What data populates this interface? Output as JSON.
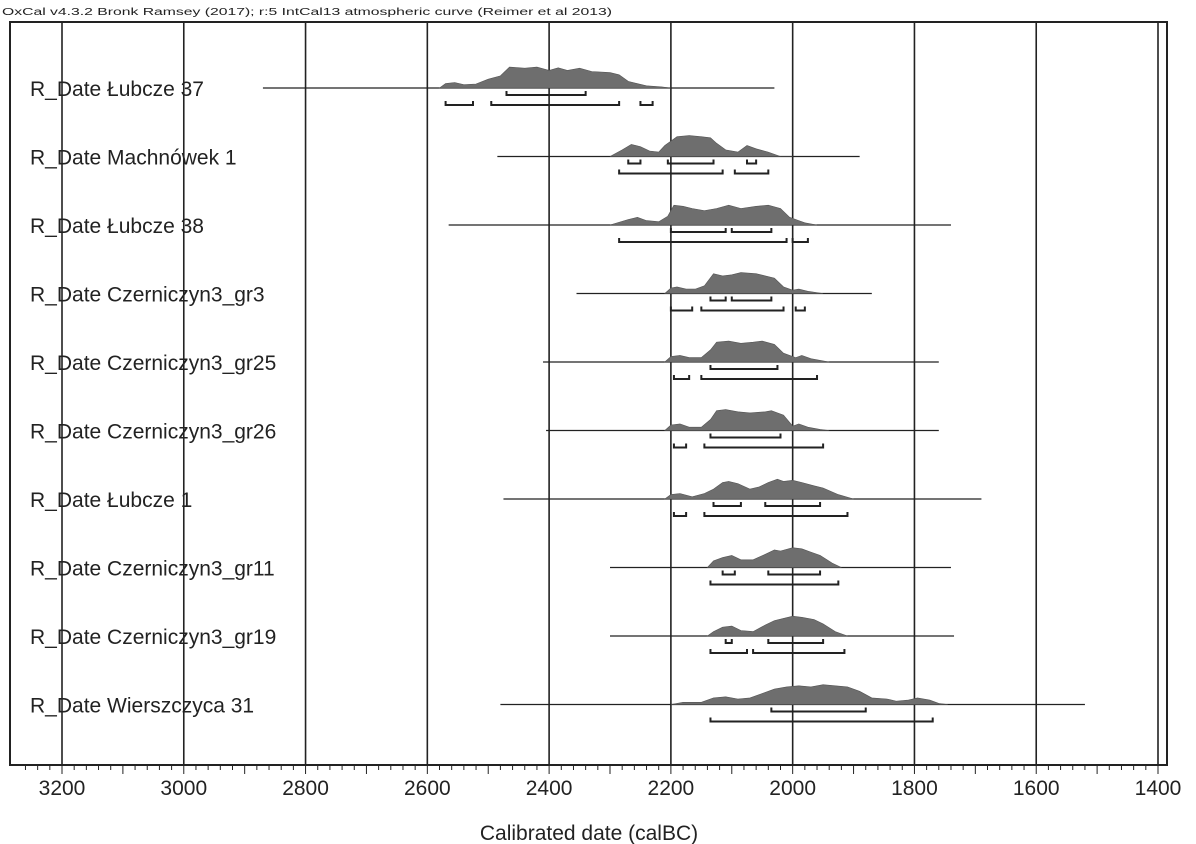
{
  "chart_data": {
    "type": "area",
    "header": "OxCal v4.3.2 Bronk Ramsey (2017); r:5 IntCal13 atmospheric curve (Reimer et al 2013)",
    "xlabel": "Calibrated date (calBC)",
    "xlim": [
      3270,
      1390
    ],
    "x_ticks": [
      3200,
      3000,
      2800,
      2600,
      2400,
      2200,
      2000,
      1800,
      1600,
      1400
    ],
    "grid": true,
    "colors": {
      "distribution": "#6e6e6e",
      "line": "#222222",
      "grid": "#222222"
    },
    "series": [
      {
        "name": "R_Date Łubcze 37",
        "range": [
          2870,
          2030
        ],
        "density": [
          [
            2580,
            0
          ],
          [
            2570,
            0.2
          ],
          [
            2555,
            0.25
          ],
          [
            2540,
            0.15
          ],
          [
            2520,
            0.18
          ],
          [
            2500,
            0.4
          ],
          [
            2480,
            0.55
          ],
          [
            2465,
            0.95
          ],
          [
            2440,
            0.9
          ],
          [
            2420,
            0.95
          ],
          [
            2400,
            0.8
          ],
          [
            2385,
            0.92
          ],
          [
            2370,
            0.8
          ],
          [
            2350,
            0.9
          ],
          [
            2330,
            0.75
          ],
          [
            2300,
            0.7
          ],
          [
            2285,
            0.6
          ],
          [
            2270,
            0.3
          ],
          [
            2240,
            0.1
          ],
          [
            2215,
            0.05
          ],
          [
            2200,
            0
          ]
        ],
        "hpd68": [
          [
            2470,
            2340
          ]
        ],
        "hpd95": [
          [
            2570,
            2525
          ],
          [
            2495,
            2285
          ],
          [
            2250,
            2230
          ]
        ]
      },
      {
        "name": "R_Date Machnówek 1",
        "range": [
          2485,
          1890
        ],
        "density": [
          [
            2300,
            0
          ],
          [
            2280,
            0.3
          ],
          [
            2265,
            0.55
          ],
          [
            2250,
            0.45
          ],
          [
            2235,
            0.25
          ],
          [
            2220,
            0.2
          ],
          [
            2210,
            0.5
          ],
          [
            2200,
            0.7
          ],
          [
            2190,
            0.9
          ],
          [
            2170,
            0.95
          ],
          [
            2150,
            0.9
          ],
          [
            2135,
            0.85
          ],
          [
            2125,
            0.6
          ],
          [
            2110,
            0.3
          ],
          [
            2090,
            0.2
          ],
          [
            2075,
            0.5
          ],
          [
            2060,
            0.35
          ],
          [
            2040,
            0.2
          ],
          [
            2020,
            0
          ],
          [
            2000,
            0
          ]
        ],
        "hpd68": [
          [
            2270,
            2250
          ],
          [
            2205,
            2130
          ],
          [
            2075,
            2060
          ]
        ],
        "hpd95": [
          [
            2285,
            2115
          ],
          [
            2095,
            2040
          ]
        ]
      },
      {
        "name": "R_Date Łubcze 38",
        "range": [
          2565,
          1740
        ],
        "density": [
          [
            2300,
            0
          ],
          [
            2270,
            0.25
          ],
          [
            2255,
            0.35
          ],
          [
            2240,
            0.2
          ],
          [
            2220,
            0.15
          ],
          [
            2205,
            0.4
          ],
          [
            2195,
            0.9
          ],
          [
            2180,
            0.85
          ],
          [
            2165,
            0.75
          ],
          [
            2145,
            0.65
          ],
          [
            2125,
            0.75
          ],
          [
            2105,
            0.9
          ],
          [
            2085,
            0.75
          ],
          [
            2060,
            0.85
          ],
          [
            2040,
            0.9
          ],
          [
            2020,
            0.75
          ],
          [
            2005,
            0.35
          ],
          [
            1990,
            0.2
          ],
          [
            1980,
            0.1
          ],
          [
            1960,
            0
          ]
        ],
        "hpd68": [
          [
            2200,
            2110
          ],
          [
            2100,
            2035
          ]
        ],
        "hpd95": [
          [
            2285,
            2010
          ],
          [
            2000,
            1975
          ]
        ]
      },
      {
        "name": "R_Date Czerniczyn3_gr3",
        "range": [
          2355,
          1870
        ],
        "density": [
          [
            2210,
            0
          ],
          [
            2200,
            0.25
          ],
          [
            2190,
            0.3
          ],
          [
            2175,
            0.2
          ],
          [
            2160,
            0.2
          ],
          [
            2145,
            0.35
          ],
          [
            2130,
            0.9
          ],
          [
            2115,
            0.8
          ],
          [
            2100,
            0.85
          ],
          [
            2085,
            0.95
          ],
          [
            2060,
            0.9
          ],
          [
            2045,
            0.8
          ],
          [
            2030,
            0.7
          ],
          [
            2015,
            0.3
          ],
          [
            2000,
            0.15
          ],
          [
            1990,
            0.2
          ],
          [
            1975,
            0.1
          ],
          [
            1950,
            0
          ]
        ],
        "hpd68": [
          [
            2135,
            2110
          ],
          [
            2100,
            2035
          ]
        ],
        "hpd95": [
          [
            2200,
            2165
          ],
          [
            2150,
            2015
          ],
          [
            1995,
            1980
          ]
        ]
      },
      {
        "name": "R_Date Czerniczyn3_gr25",
        "range": [
          2410,
          1760
        ],
        "density": [
          [
            2210,
            0
          ],
          [
            2200,
            0.25
          ],
          [
            2185,
            0.3
          ],
          [
            2170,
            0.2
          ],
          [
            2150,
            0.2
          ],
          [
            2135,
            0.55
          ],
          [
            2125,
            0.9
          ],
          [
            2105,
            0.95
          ],
          [
            2085,
            0.85
          ],
          [
            2065,
            0.9
          ],
          [
            2050,
            0.95
          ],
          [
            2030,
            0.8
          ],
          [
            2015,
            0.4
          ],
          [
            1995,
            0.2
          ],
          [
            1985,
            0.3
          ],
          [
            1970,
            0.15
          ],
          [
            1950,
            0.05
          ],
          [
            1940,
            0
          ]
        ],
        "hpd68": [
          [
            2135,
            2025
          ]
        ],
        "hpd95": [
          [
            2195,
            2170
          ],
          [
            2150,
            1960
          ]
        ]
      },
      {
        "name": "R_Date Czerniczyn3_gr26",
        "range": [
          2405,
          1760
        ],
        "density": [
          [
            2210,
            0
          ],
          [
            2200,
            0.25
          ],
          [
            2185,
            0.3
          ],
          [
            2170,
            0.15
          ],
          [
            2150,
            0.15
          ],
          [
            2135,
            0.5
          ],
          [
            2125,
            0.9
          ],
          [
            2110,
            0.95
          ],
          [
            2090,
            0.85
          ],
          [
            2070,
            0.8
          ],
          [
            2045,
            0.85
          ],
          [
            2035,
            0.9
          ],
          [
            2015,
            0.7
          ],
          [
            2000,
            0.2
          ],
          [
            1990,
            0.3
          ],
          [
            1975,
            0.15
          ],
          [
            1955,
            0.05
          ],
          [
            1940,
            0
          ]
        ],
        "hpd68": [
          [
            2135,
            2020
          ]
        ],
        "hpd95": [
          [
            2195,
            2175
          ],
          [
            2145,
            1950
          ]
        ]
      },
      {
        "name": "R_Date Łubcze 1",
        "range": [
          2475,
          1690
        ],
        "density": [
          [
            2210,
            0
          ],
          [
            2200,
            0.2
          ],
          [
            2185,
            0.25
          ],
          [
            2165,
            0.1
          ],
          [
            2145,
            0.25
          ],
          [
            2130,
            0.45
          ],
          [
            2115,
            0.75
          ],
          [
            2105,
            0.8
          ],
          [
            2090,
            0.7
          ],
          [
            2070,
            0.45
          ],
          [
            2055,
            0.55
          ],
          [
            2040,
            0.75
          ],
          [
            2025,
            0.9
          ],
          [
            2015,
            0.8
          ],
          [
            2000,
            0.85
          ],
          [
            1985,
            0.75
          ],
          [
            1965,
            0.6
          ],
          [
            1950,
            0.5
          ],
          [
            1925,
            0.2
          ],
          [
            1900,
            0
          ]
        ],
        "hpd68": [
          [
            2130,
            2085
          ],
          [
            2045,
            1955
          ]
        ],
        "hpd95": [
          [
            2195,
            2175
          ],
          [
            2145,
            1910
          ]
        ]
      },
      {
        "name": "R_Date Czerniczyn3_gr11",
        "range": [
          2300,
          1740
        ],
        "density": [
          [
            2140,
            0
          ],
          [
            2130,
            0.3
          ],
          [
            2115,
            0.45
          ],
          [
            2100,
            0.55
          ],
          [
            2085,
            0.35
          ],
          [
            2065,
            0.35
          ],
          [
            2045,
            0.6
          ],
          [
            2030,
            0.8
          ],
          [
            2020,
            0.75
          ],
          [
            2000,
            0.9
          ],
          [
            1985,
            0.85
          ],
          [
            1970,
            0.7
          ],
          [
            1955,
            0.55
          ],
          [
            1935,
            0.2
          ],
          [
            1920,
            0
          ]
        ],
        "hpd68": [
          [
            2115,
            2095
          ],
          [
            2040,
            1955
          ]
        ],
        "hpd95": [
          [
            2135,
            1925
          ]
        ]
      },
      {
        "name": "R_Date Czerniczyn3_gr19",
        "range": [
          2300,
          1735
        ],
        "density": [
          [
            2140,
            0
          ],
          [
            2130,
            0.2
          ],
          [
            2115,
            0.4
          ],
          [
            2100,
            0.45
          ],
          [
            2085,
            0.25
          ],
          [
            2065,
            0.2
          ],
          [
            2045,
            0.5
          ],
          [
            2030,
            0.7
          ],
          [
            2015,
            0.8
          ],
          [
            2000,
            0.9
          ],
          [
            1985,
            0.85
          ],
          [
            1965,
            0.75
          ],
          [
            1950,
            0.55
          ],
          [
            1930,
            0.2
          ],
          [
            1910,
            0
          ]
        ],
        "hpd68": [
          [
            2110,
            2100
          ],
          [
            2040,
            1950
          ]
        ],
        "hpd95": [
          [
            2135,
            2075
          ],
          [
            2065,
            1915
          ]
        ]
      },
      {
        "name": "R_Date Wierszczyca 31",
        "range": [
          2480,
          1520
        ],
        "density": [
          [
            2200,
            0
          ],
          [
            2180,
            0.1
          ],
          [
            2150,
            0.1
          ],
          [
            2130,
            0.3
          ],
          [
            2110,
            0.35
          ],
          [
            2090,
            0.25
          ],
          [
            2070,
            0.3
          ],
          [
            2050,
            0.5
          ],
          [
            2030,
            0.7
          ],
          [
            2010,
            0.8
          ],
          [
            1990,
            0.85
          ],
          [
            1970,
            0.8
          ],
          [
            1950,
            0.9
          ],
          [
            1930,
            0.85
          ],
          [
            1910,
            0.8
          ],
          [
            1890,
            0.6
          ],
          [
            1870,
            0.3
          ],
          [
            1845,
            0.25
          ],
          [
            1830,
            0.15
          ],
          [
            1810,
            0.2
          ],
          [
            1795,
            0.3
          ],
          [
            1775,
            0.2
          ],
          [
            1760,
            0.05
          ],
          [
            1745,
            0
          ]
        ],
        "hpd68": [
          [
            2035,
            1880
          ]
        ],
        "hpd95": [
          [
            2135,
            1770
          ]
        ]
      }
    ]
  }
}
